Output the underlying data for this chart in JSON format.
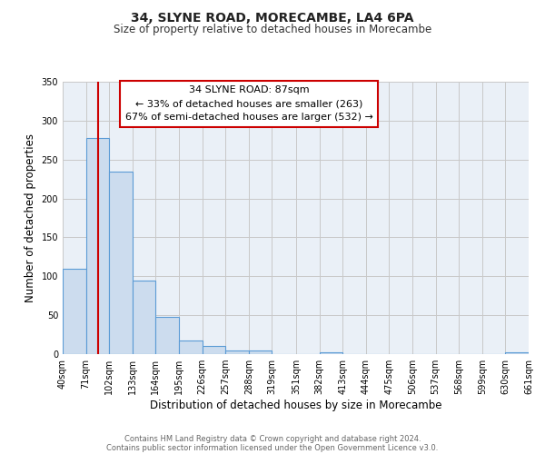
{
  "title": "34, SLYNE ROAD, MORECAMBE, LA4 6PA",
  "subtitle": "Size of property relative to detached houses in Morecambe",
  "xlabel": "Distribution of detached houses by size in Morecambe",
  "ylabel": "Number of detached properties",
  "bin_edges": [
    40,
    71,
    102,
    133,
    164,
    195,
    226,
    257,
    288,
    319,
    351,
    382,
    413,
    444,
    475,
    506,
    537,
    568,
    599,
    630,
    661
  ],
  "bar_heights": [
    110,
    278,
    235,
    95,
    48,
    18,
    11,
    5,
    5,
    0,
    0,
    2,
    0,
    0,
    0,
    0,
    0,
    0,
    0,
    2
  ],
  "bar_color": "#ccdcee",
  "bar_edge_color": "#5b9bd5",
  "grid_color": "#c8c8c8",
  "bg_color": "#eaf0f7",
  "red_line_x": 87,
  "annotation_title": "34 SLYNE ROAD: 87sqm",
  "annotation_line1": "← 33% of detached houses are smaller (263)",
  "annotation_line2": "67% of semi-detached houses are larger (532) →",
  "annotation_box_color": "#ffffff",
  "annotation_border_color": "#cc0000",
  "ylim": [
    0,
    350
  ],
  "yticks": [
    0,
    50,
    100,
    150,
    200,
    250,
    300,
    350
  ],
  "footer1": "Contains HM Land Registry data © Crown copyright and database right 2024.",
  "footer2": "Contains public sector information licensed under the Open Government Licence v3.0.",
  "title_fontsize": 10,
  "subtitle_fontsize": 8.5,
  "xlabel_fontsize": 8.5,
  "ylabel_fontsize": 8.5,
  "tick_fontsize": 7,
  "ann_fontsize": 8,
  "footer_fontsize": 6
}
